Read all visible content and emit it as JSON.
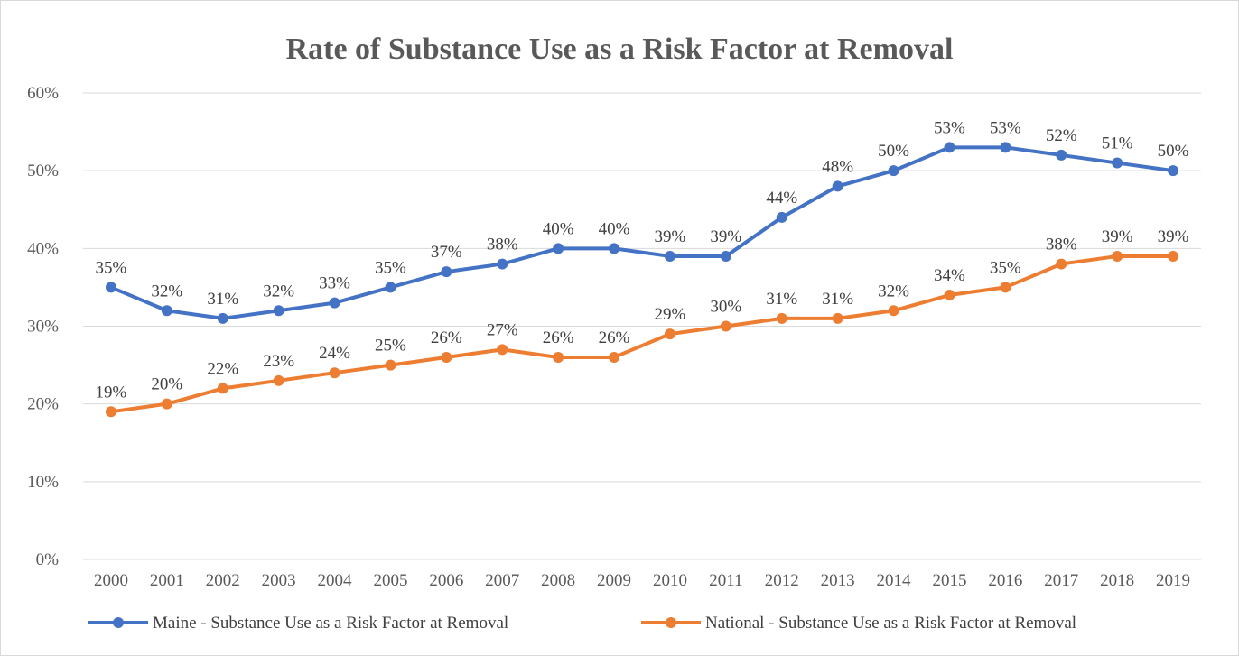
{
  "chart_data": {
    "type": "line",
    "title": "Rate of Substance Use as a Risk Factor at Removal",
    "categories": [
      "2000",
      "2001",
      "2002",
      "2003",
      "2004",
      "2005",
      "2006",
      "2007",
      "2008",
      "2009",
      "2010",
      "2011",
      "2012",
      "2013",
      "2014",
      "2015",
      "2016",
      "2017",
      "2018",
      "2019"
    ],
    "y_ticks": [
      "0%",
      "10%",
      "20%",
      "30%",
      "40%",
      "50%",
      "60%"
    ],
    "ylim": [
      0,
      60
    ],
    "grid": true,
    "legend_position": "bottom",
    "series": [
      {
        "name": "Maine - Substance Use as a Risk Factor at Removal",
        "color": "#4472c4",
        "values": [
          35,
          32,
          31,
          32,
          33,
          35,
          37,
          38,
          40,
          40,
          39,
          39,
          44,
          48,
          50,
          53,
          53,
          52,
          51,
          50
        ],
        "labels": [
          "35%",
          "32%",
          "31%",
          "32%",
          "33%",
          "35%",
          "37%",
          "38%",
          "40%",
          "40%",
          "39%",
          "39%",
          "44%",
          "48%",
          "50%",
          "53%",
          "53%",
          "52%",
          "51%",
          "50%"
        ]
      },
      {
        "name": "National - Substance Use as a Risk Factor at Removal",
        "color": "#ed7d31",
        "values": [
          19,
          20,
          22,
          23,
          24,
          25,
          26,
          27,
          26,
          26,
          29,
          30,
          31,
          31,
          32,
          34,
          35,
          38,
          39,
          39
        ],
        "labels": [
          "19%",
          "20%",
          "22%",
          "23%",
          "24%",
          "25%",
          "26%",
          "27%",
          "26%",
          "26%",
          "29%",
          "30%",
          "31%",
          "31%",
          "32%",
          "34%",
          "35%",
          "38%",
          "39%",
          "39%"
        ]
      }
    ]
  }
}
